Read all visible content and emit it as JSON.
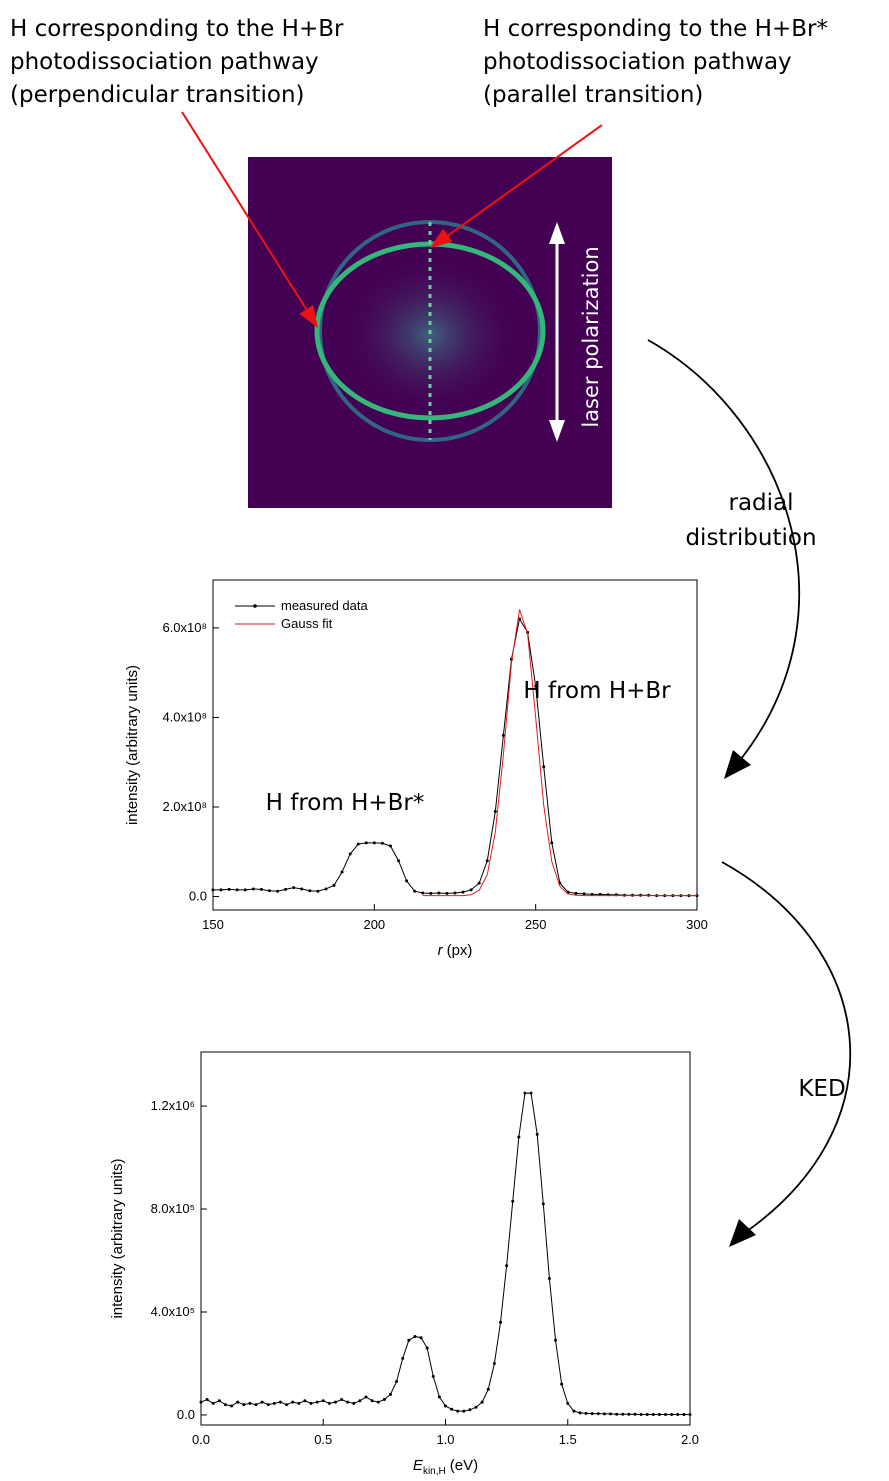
{
  "figure": {
    "perpendicular_label": [
      "H corresponding to the H+Br",
      "photodissociation pathway",
      "(perpendicular transition)"
    ],
    "parallel_label": [
      "H corresponding to the H+Br*",
      "photodissociation pathway",
      "(parallel transition)"
    ],
    "polarization_label": "laser polarization",
    "radial_label": [
      "radial",
      "distribution"
    ],
    "ked_label": "KED"
  },
  "chart_data": [
    {
      "type": "line",
      "xlabel": {
        "symbol": "r",
        "unit": "(px)"
      },
      "ylabel": "intensity (arbitrary units)",
      "annotations": [
        "H from H+Br*",
        "H from H+Br"
      ],
      "legend": "upper left",
      "x": [
        150,
        152.5,
        155,
        157.5,
        160,
        162.5,
        165,
        167.5,
        170,
        172.5,
        175,
        177.5,
        180,
        182.5,
        185,
        187.5,
        190,
        192.5,
        195,
        197.5,
        200,
        202.5,
        205,
        207.5,
        210,
        212.5,
        215,
        217.5,
        220,
        222.5,
        225,
        227.5,
        230,
        232.5,
        235,
        237.5,
        240,
        242.5,
        245,
        247.5,
        250,
        252.5,
        255,
        257.5,
        260,
        262.5,
        265,
        267.5,
        270,
        272.5,
        275,
        277.5,
        280,
        282.5,
        285,
        287.5,
        290,
        292.5,
        295,
        297.5,
        300
      ],
      "series": [
        {
          "name": "measured data",
          "color": "#000000",
          "markers": true,
          "values": [
            15000000,
            15000000,
            16000000,
            15000000,
            15000000,
            17000000,
            16000000,
            13000000,
            12000000,
            16000000,
            20000000,
            17000000,
            13000000,
            12000000,
            17000000,
            25000000,
            55000000,
            95000000,
            117000000,
            120000000,
            120000000,
            119000000,
            113000000,
            80000000,
            35000000,
            12000000,
            8000000,
            7000000,
            8000000,
            7000000,
            8000000,
            10000000,
            15000000,
            30000000,
            80000000,
            190000000,
            360000000,
            530000000,
            620000000,
            590000000,
            470000000,
            290000000,
            120000000,
            30000000,
            10000000,
            7000000,
            6000000,
            5000000,
            5000000,
            4000000,
            4000000,
            3000000,
            3000000,
            3000000,
            3000000,
            2000000,
            2000000,
            2000000,
            2000000,
            2000000,
            2000000
          ]
        },
        {
          "name": "Gauss fit",
          "color": "#e41a1c",
          "markers": false,
          "values": [
            null,
            null,
            null,
            null,
            null,
            null,
            null,
            null,
            null,
            null,
            null,
            null,
            null,
            null,
            null,
            null,
            null,
            null,
            null,
            null,
            null,
            null,
            null,
            null,
            null,
            null,
            2000000,
            2000000,
            2000000,
            2000000,
            2000000,
            2000000,
            4000000,
            14000000,
            49000000,
            144000000,
            317000000,
            522000000,
            641000000,
            587000000,
            400000000,
            204000000,
            78000000,
            23000000,
            6000000,
            3000000,
            2000000,
            2000000,
            2000000,
            2000000,
            2000000,
            2000000,
            2000000,
            2000000,
            2000000,
            2000000,
            2000000,
            2000000,
            2000000,
            2000000,
            2000000
          ]
        }
      ],
      "xlim": [
        150,
        300
      ],
      "xticks": [
        150,
        200,
        250,
        300
      ],
      "ylim": [
        -30000000,
        707000000
      ],
      "yticks": [
        {
          "value": 0,
          "label": "0.0"
        },
        {
          "value": 200000000,
          "label": "2.0x10⁸"
        },
        {
          "value": 400000000,
          "label": "4.0x10⁸"
        },
        {
          "value": 600000000,
          "label": "6.0x10⁸"
        }
      ]
    },
    {
      "type": "line",
      "xlabel": {
        "symbol": "E",
        "subscript": "kin,H",
        "unit": "(eV)"
      },
      "ylabel": "intensity  (arbitrary units)",
      "color": "#000000",
      "markers": true,
      "x": [
        0,
        0.025,
        0.05,
        0.075,
        0.1,
        0.125,
        0.15,
        0.175,
        0.2,
        0.225,
        0.25,
        0.275,
        0.3,
        0.325,
        0.35,
        0.375,
        0.4,
        0.425,
        0.45,
        0.475,
        0.5,
        0.525,
        0.55,
        0.575,
        0.6,
        0.625,
        0.65,
        0.675,
        0.7,
        0.725,
        0.75,
        0.775,
        0.8,
        0.825,
        0.85,
        0.875,
        0.9,
        0.925,
        0.95,
        0.975,
        1.0,
        1.025,
        1.05,
        1.075,
        1.1,
        1.125,
        1.15,
        1.175,
        1.2,
        1.225,
        1.25,
        1.275,
        1.3,
        1.325,
        1.35,
        1.375,
        1.4,
        1.425,
        1.45,
        1.475,
        1.5,
        1.525,
        1.55,
        1.575,
        1.6,
        1.625,
        1.65,
        1.675,
        1.7,
        1.725,
        1.75,
        1.775,
        1.8,
        1.825,
        1.85,
        1.875,
        1.9,
        1.925,
        1.95,
        1.975,
        2.0
      ],
      "values": [
        50000,
        60000,
        45000,
        55000,
        40000,
        35000,
        50000,
        40000,
        45000,
        40000,
        50000,
        40000,
        45000,
        50000,
        40000,
        50000,
        45000,
        55000,
        45000,
        50000,
        55000,
        45000,
        50000,
        60000,
        50000,
        45000,
        55000,
        70000,
        55000,
        50000,
        60000,
        80000,
        130000,
        220000,
        290000,
        305000,
        300000,
        260000,
        150000,
        70000,
        35000,
        22000,
        15000,
        15000,
        20000,
        30000,
        50000,
        100000,
        200000,
        360000,
        580000,
        830000,
        1080000,
        1250000,
        1250000,
        1090000,
        820000,
        530000,
        290000,
        120000,
        45000,
        15000,
        8000,
        6000,
        5000,
        5000,
        4000,
        4000,
        3000,
        3000,
        3000,
        3000,
        2000,
        2000,
        2000,
        2000,
        2000,
        2000,
        2000,
        2000,
        2000
      ],
      "xlim": [
        0,
        2
      ],
      "xticks": [
        {
          "value": 0,
          "label": "0.0"
        },
        0.5,
        {
          "value": 1,
          "label": "1.0"
        },
        1.5,
        {
          "value": 2,
          "label": "2.0"
        }
      ],
      "ylim": [
        -39000,
        1410000
      ],
      "yticks": [
        {
          "value": 0,
          "label": "0.0"
        },
        {
          "value": 400000,
          "label": "4.0x10⁵"
        },
        {
          "value": 800000,
          "label": "8.0x10⁵"
        },
        {
          "value": 1200000,
          "label": "1.2x10⁶"
        }
      ]
    }
  ]
}
